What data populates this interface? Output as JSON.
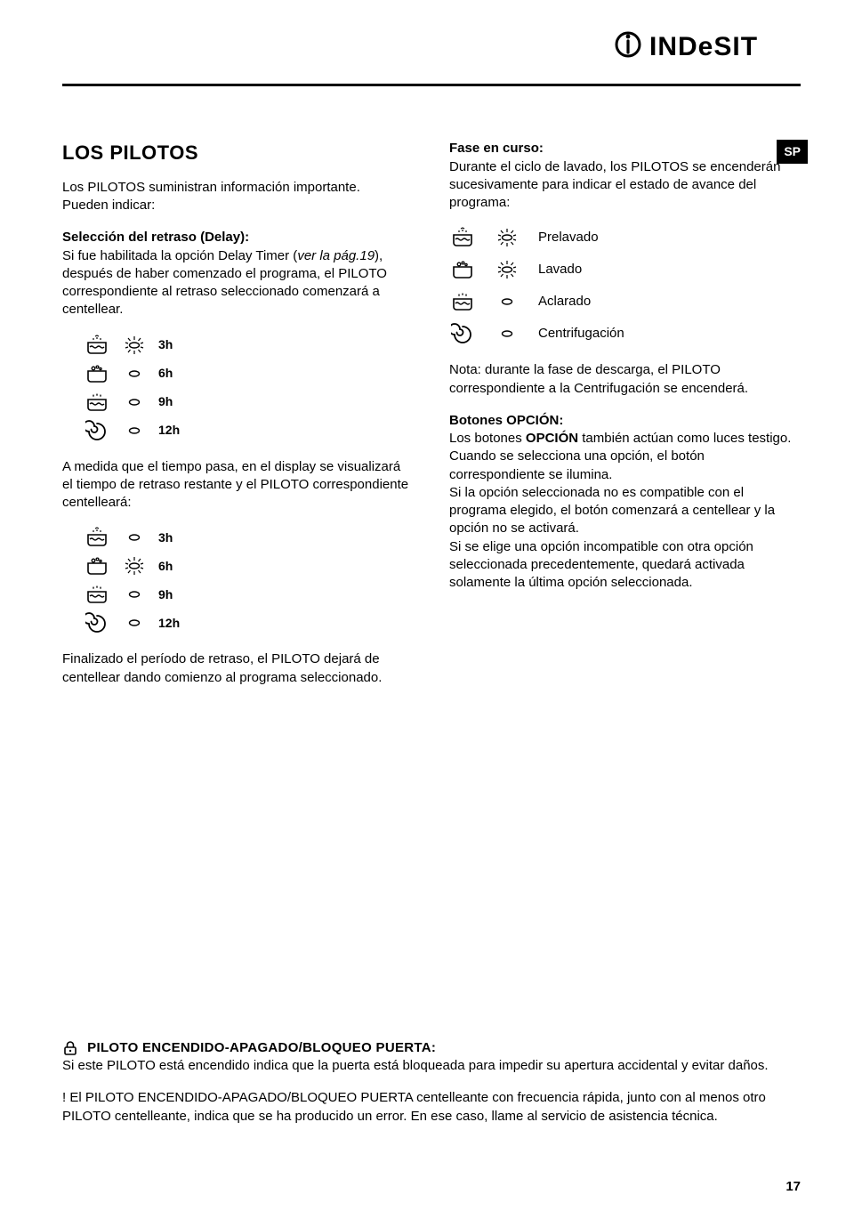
{
  "brand": {
    "name": "INDeSIT"
  },
  "lang_badge": "SP",
  "left": {
    "title": "LOS PILOTOS",
    "intro1": "Los PILOTOS suministran información importante.",
    "intro2": "Pueden indicar:",
    "delay_heading": "Selección del retraso (Delay):",
    "delay_body1a": "Si fue habilitada la opción Delay Timer (",
    "delay_body1b": "ver la pág.19",
    "delay_body1c": "), después de haber comenzado el programa, el PILOTO correspondiente al retraso seleccionado comenzará a centellear.",
    "delay_rows": [
      {
        "icon": "prewash",
        "led": "blink-on",
        "label": "3h"
      },
      {
        "icon": "wash",
        "led": "off",
        "label": "6h"
      },
      {
        "icon": "rinse",
        "led": "off",
        "label": "9h"
      },
      {
        "icon": "spin",
        "led": "off",
        "label": "12h"
      }
    ],
    "between_para": "A medida que el tiempo pasa, en el display se visualizará el tiempo de retraso restante y el PILOTO correspondiente centelleará:",
    "delay_rows2": [
      {
        "icon": "prewash",
        "led": "off",
        "label": "3h"
      },
      {
        "icon": "wash",
        "led": "blink-on",
        "label": "6h"
      },
      {
        "icon": "rinse",
        "led": "off",
        "label": "9h"
      },
      {
        "icon": "spin",
        "led": "off",
        "label": "12h"
      }
    ],
    "tail_para": "Finalizado el período de retraso, el PILOTO dejará de centellear dando comienzo al programa seleccionado."
  },
  "right": {
    "phase_heading": "Fase en curso:",
    "phase_body": "Durante el ciclo de lavado, los PILOTOS se encenderán sucesivamente para indicar el estado de avance del programa:",
    "phases": [
      {
        "icon": "prewash",
        "led": "blink-on",
        "label": "Prelavado"
      },
      {
        "icon": "wash",
        "led": "blink-on",
        "label": "Lavado"
      },
      {
        "icon": "rinse",
        "led": "off",
        "label": "Aclarado"
      },
      {
        "icon": "spin",
        "led": "off",
        "label": "Centrifugación"
      }
    ],
    "note": "Nota: durante la fase de descarga, el PILOTO correspondiente a la Centrifugación se encenderá.",
    "option_heading": "Botones OPCIÓN:",
    "option_p1a": "Los botones ",
    "option_p1b": "OPCIÓN",
    "option_p1c": " también actúan como luces testigo.",
    "option_p2": "Cuando se selecciona una opción, el botón correspondiente se ilumina.",
    "option_p3": "Si la opción seleccionada no es compatible con el programa elegido, el botón comenzará a centellear y la opción no se activará.",
    "option_p4": "Si se elige una opción incompatible con otra opción seleccionada precedentemente, quedará activada solamente la última opción seleccionada."
  },
  "footer": {
    "title": "PILOTO ENCENDIDO-APAGADO/BLOQUEO PUERTA:",
    "p1": "Si este PILOTO está encendido indica que la puerta está bloqueada para impedir su apertura accidental y evitar daños.",
    "p2": "! El PILOTO ENCENDIDO-APAGADO/BLOQUEO PUERTA centelleante con frecuencia rápida, junto con al menos otro PILOTO centelleante, indica que se ha producido un error.  En ese caso, llame al servicio de asistencia técnica."
  },
  "page_number": "17",
  "colors": {
    "text": "#000000",
    "bg": "#ffffff",
    "badge_bg": "#000000",
    "badge_fg": "#ffffff"
  }
}
